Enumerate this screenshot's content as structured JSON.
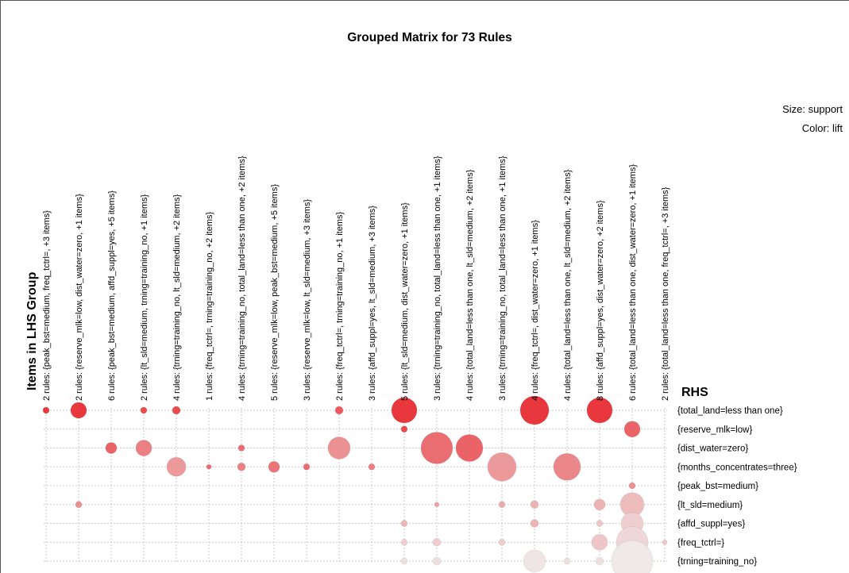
{
  "chart_data": {
    "type": "grouped_matrix",
    "title": "Grouped Matrix for 73 Rules",
    "y_label": "Items in LHS Group",
    "rhs_label": "RHS",
    "size_label": "Size: support",
    "color_label": "Color: lift",
    "color_scale": [
      "#efe9e9",
      "#e8383d"
    ],
    "categories": [
      "2 rules: {peak_bst=medium, freq_tctrl=, +3 items}",
      "2 rules: {reserve_mlk=low, dist_water=zero, +1 items}",
      "6 rules: {peak_bst=medium, affd_suppl=yes, +5 items}",
      "2 rules: {lt_sld=medium, trning=training_no, +1 items}",
      "4 rules: {trning=training_no, lt_sld=medium, +2 items}",
      "1 rules: {freq_tctrl=, trning=training_no, +2 items}",
      "4 rules: {trning=training_no, total_land=less than one, +2 items}",
      "5 rules: {reserve_mlk=low, peak_bst=medium, +5 items}",
      "3 rules: {reserve_mlk=low, lt_sld=medium, +3 items}",
      "2 rules: {freq_tctrl=, trning=training_no, +1 items}",
      "3 rules: {affd_suppl=yes, lt_sld=medium, +3 items}",
      "5 rules: {lt_sld=medium, dist_water=zero, +1 items}",
      "3 rules: {trning=training_no, total_land=less than one, +1 items}",
      "4 rules: {total_land=less than one, lt_sld=medium, +2 items}",
      "3 rules: {trning=training_no, total_land=less than one, +1 items}",
      "4 rules: {freq_tctrl=, dist_water=zero, +1 items}",
      "4 rules: {total_land=less than one, lt_sld=medium, +2 items}",
      "8 rules: {affd_suppl=yes, dist_water=zero, +2 items}",
      "6 rules: {total_land=less than one, dist_water=zero, +1 items}",
      "2 rules: {total_land=less than one, freq_tctrl=, +3 items}"
    ],
    "series": [
      {
        "name": "{total_land=less than one}",
        "values": [
          0.004,
          0.025,
          null,
          0.004,
          0.0063,
          null,
          null,
          null,
          null,
          0.0063,
          null,
          0.064,
          null,
          null,
          null,
          0.081,
          null,
          0.064,
          null,
          null
        ],
        "lift": [
          2.5,
          2.5,
          null,
          2.35,
          2.35,
          null,
          null,
          null,
          null,
          2.2,
          null,
          2.5,
          null,
          null,
          null,
          2.5,
          null,
          2.5,
          null,
          null
        ]
      },
      {
        "name": "{reserve_mlk=low}",
        "values": [
          null,
          null,
          null,
          null,
          null,
          null,
          null,
          null,
          null,
          null,
          null,
          0.004,
          null,
          null,
          null,
          null,
          null,
          null,
          0.025,
          null
        ],
        "lift": [
          null,
          null,
          null,
          null,
          null,
          null,
          null,
          null,
          null,
          null,
          null,
          2.35,
          null,
          null,
          null,
          null,
          null,
          null,
          2.13,
          null
        ]
      },
      {
        "name": "{dist_water=zero}",
        "values": [
          null,
          null,
          0.0123,
          0.025,
          null,
          null,
          0.004,
          null,
          null,
          0.049,
          null,
          null,
          0.1,
          0.0723,
          null,
          null,
          null,
          null,
          null,
          null
        ],
        "lift": [
          null,
          null,
          2.13,
          1.9,
          null,
          null,
          2.05,
          null,
          null,
          1.75,
          null,
          null,
          2.05,
          2.13,
          null,
          null,
          null,
          null,
          null,
          null
        ]
      },
      {
        "name": "{months_concentrates=three}",
        "values": [
          null,
          null,
          null,
          null,
          0.036,
          0.0023,
          0.0063,
          0.0123,
          0.004,
          null,
          0.004,
          null,
          null,
          null,
          0.081,
          null,
          0.0723,
          null,
          null,
          null
        ],
        "lift": [
          null,
          null,
          null,
          null,
          1.68,
          2.05,
          1.9,
          1.98,
          2.05,
          null,
          1.9,
          null,
          null,
          null,
          1.68,
          null,
          1.83,
          null,
          null,
          null
        ]
      },
      {
        "name": "{peak_bst=medium}",
        "values": [
          null,
          null,
          null,
          null,
          null,
          null,
          null,
          null,
          null,
          null,
          null,
          null,
          null,
          null,
          null,
          null,
          null,
          null,
          0.004,
          null
        ],
        "lift": [
          null,
          null,
          null,
          null,
          null,
          null,
          null,
          null,
          null,
          null,
          null,
          null,
          null,
          null,
          null,
          null,
          null,
          null,
          1.75,
          null
        ]
      },
      {
        "name": "{lt_sld=medium}",
        "values": [
          null,
          0.004,
          null,
          null,
          null,
          null,
          null,
          null,
          null,
          null,
          null,
          null,
          0.0023,
          null,
          0.004,
          0.0063,
          null,
          0.0123,
          0.0563,
          null
        ],
        "lift": [
          null,
          1.75,
          null,
          null,
          null,
          null,
          null,
          null,
          null,
          null,
          null,
          null,
          1.6,
          null,
          1.53,
          1.45,
          null,
          1.45,
          1.38,
          null
        ]
      },
      {
        "name": "{affd_suppl=yes}",
        "values": [
          null,
          null,
          null,
          null,
          null,
          null,
          null,
          null,
          null,
          null,
          null,
          0.004,
          null,
          null,
          null,
          0.0063,
          null,
          0.004,
          0.049,
          null
        ],
        "lift": [
          null,
          null,
          null,
          null,
          null,
          null,
          null,
          null,
          null,
          null,
          null,
          1.45,
          null,
          null,
          null,
          1.45,
          null,
          1.3,
          1.23,
          null
        ]
      },
      {
        "name": "{freq_tctrl=}",
        "values": [
          null,
          null,
          null,
          null,
          null,
          null,
          null,
          null,
          null,
          null,
          null,
          0.004,
          0.0063,
          null,
          0.004,
          null,
          null,
          0.025,
          0.1,
          0.0023
        ],
        "lift": [
          null,
          null,
          null,
          null,
          null,
          null,
          null,
          null,
          null,
          null,
          null,
          1.23,
          1.23,
          null,
          1.23,
          null,
          null,
          1.3,
          1.15,
          1.3
        ]
      },
      {
        "name": "{trning=training_no}",
        "values": [
          null,
          null,
          null,
          null,
          null,
          null,
          null,
          null,
          null,
          null,
          null,
          0.004,
          0.0063,
          null,
          null,
          0.049,
          0.004,
          0.0063,
          0.169,
          null
        ],
        "lift": [
          null,
          null,
          null,
          null,
          null,
          null,
          null,
          null,
          null,
          null,
          null,
          1.08,
          1.08,
          null,
          null,
          1.03,
          1.08,
          1.08,
          1.0,
          null
        ]
      }
    ]
  }
}
